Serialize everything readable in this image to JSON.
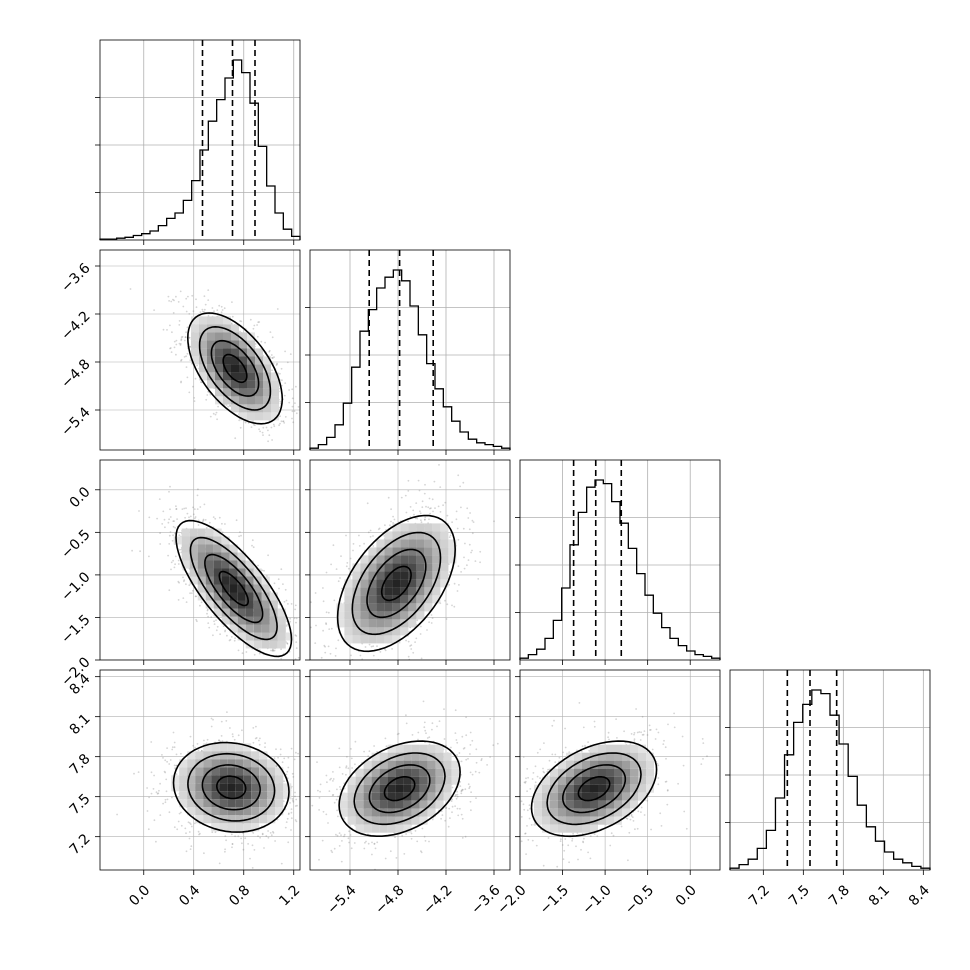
{
  "chart_data": {
    "type": "corner",
    "n_params": 4,
    "params": [
      {
        "range": [
          -0.35,
          1.25
        ],
        "ticks": [
          "0.0",
          "0.4",
          "0.8",
          "1.2"
        ],
        "tick_values": [
          0.0,
          0.4,
          0.8,
          1.2
        ],
        "quantiles": [
          0.47,
          0.71,
          0.89
        ],
        "hist": [
          0.5,
          0.5,
          1,
          1.5,
          2.5,
          3.5,
          5,
          8,
          12,
          15,
          22,
          33,
          50,
          66,
          78,
          90,
          100,
          93,
          76,
          52,
          30,
          15,
          6,
          2
        ],
        "gridlines": [
          0.0,
          0.4,
          0.8,
          1.2
        ]
      },
      {
        "range": [
          -5.9,
          -3.4
        ],
        "ticks": [
          "−5.4",
          "−4.8",
          "−4.2",
          "−3.6"
        ],
        "tick_values": [
          -5.4,
          -4.8,
          -4.2,
          -3.6
        ],
        "quantiles": [
          -5.16,
          -4.78,
          -4.36
        ],
        "hist": [
          1,
          3,
          7,
          14,
          26,
          46,
          66,
          78,
          90,
          96,
          100,
          94,
          80,
          64,
          48,
          34,
          24,
          16,
          10,
          6,
          4,
          3,
          2,
          1
        ],
        "gridlines": [
          -5.4,
          -4.8,
          -4.2,
          -3.6
        ]
      },
      {
        "range": [
          -2.0,
          0.35
        ],
        "ticks": [
          "−2.0",
          "−1.5",
          "−1.0",
          "−0.5",
          "0.0"
        ],
        "tick_values": [
          -2.0,
          -1.5,
          -1.0,
          -0.5,
          0.0
        ],
        "quantiles": [
          -1.37,
          -1.11,
          -0.81
        ],
        "hist": [
          1,
          3,
          6,
          12,
          22,
          40,
          64,
          82,
          96,
          100,
          98,
          88,
          76,
          62,
          48,
          36,
          26,
          18,
          12,
          8,
          5,
          3,
          2,
          1
        ],
        "gridlines": [
          -2.0,
          -1.5,
          -1.0,
          -0.5,
          0.0
        ]
      },
      {
        "range": [
          6.95,
          8.45
        ],
        "ticks": [
          "7.2",
          "7.5",
          "7.8",
          "8.1",
          "8.4"
        ],
        "tick_values": [
          7.2,
          7.5,
          7.8,
          8.1,
          8.4
        ],
        "quantiles": [
          7.38,
          7.55,
          7.75
        ],
        "hist": [
          1,
          3,
          6,
          12,
          22,
          40,
          64,
          82,
          92,
          100,
          98,
          86,
          70,
          52,
          36,
          24,
          16,
          10,
          6,
          4,
          2,
          1
        ],
        "gridlines": [
          7.2,
          7.5,
          7.8,
          8.1,
          8.4
        ]
      }
    ],
    "pairs": [
      {
        "row": 1,
        "col": 0,
        "mean": [
          0.73,
          -4.88
        ],
        "sd": [
          0.18,
          0.33
        ],
        "rho": -0.55
      },
      {
        "row": 2,
        "col": 0,
        "mean": [
          0.72,
          -1.16
        ],
        "sd": [
          0.22,
          0.38
        ],
        "rho": -0.75
      },
      {
        "row": 2,
        "col": 1,
        "mean": [
          -4.82,
          -1.1
        ],
        "sd": [
          0.35,
          0.38
        ],
        "rho": 0.5
      },
      {
        "row": 3,
        "col": 0,
        "mean": [
          0.7,
          7.57
        ],
        "sd": [
          0.22,
          0.16
        ],
        "rho": -0.1
      },
      {
        "row": 3,
        "col": 1,
        "mean": [
          -4.78,
          7.56
        ],
        "sd": [
          0.36,
          0.17
        ],
        "rho": 0.35
      },
      {
        "row": 3,
        "col": 2,
        "mean": [
          -1.13,
          7.56
        ],
        "sd": [
          0.35,
          0.17
        ],
        "rho": 0.4
      }
    ]
  },
  "colors": {
    "line": "#000000",
    "grid": "#b0b0b0",
    "scatter": "#888888"
  }
}
